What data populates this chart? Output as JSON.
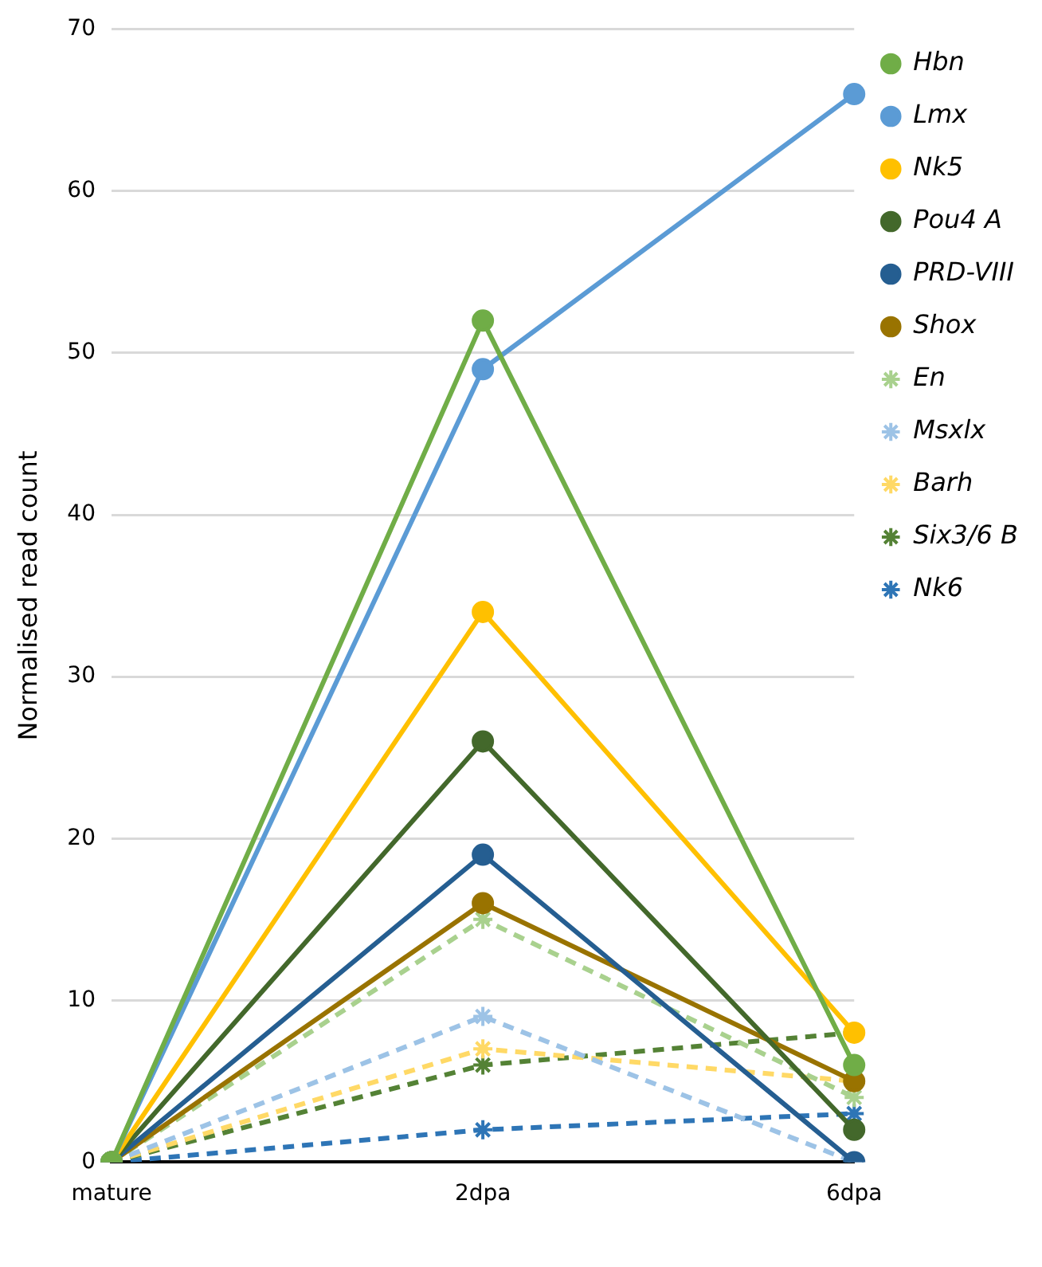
{
  "chart_data": {
    "type": "line",
    "ylabel": "Normalised read count",
    "categories": [
      "mature",
      "2dpa",
      "6dpa"
    ],
    "ylim": [
      0,
      70
    ],
    "yticks": [
      0,
      10,
      20,
      30,
      40,
      50,
      60,
      70
    ],
    "grid": "y",
    "legend": "right",
    "series": [
      {
        "name": "Hbn",
        "color": "#70ad47",
        "marker": "circle",
        "line_style": "solid",
        "values": [
          0,
          52,
          6
        ]
      },
      {
        "name": "Lmx",
        "color": "#5b9bd5",
        "marker": "circle",
        "line_style": "solid",
        "values": [
          0,
          49,
          66
        ]
      },
      {
        "name": "Nk5",
        "color": "#ffc000",
        "marker": "circle",
        "line_style": "solid",
        "values": [
          0,
          34,
          8
        ]
      },
      {
        "name": "Pou4 A",
        "color": "#43682b",
        "marker": "circle",
        "line_style": "solid",
        "values": [
          0,
          26,
          2
        ]
      },
      {
        "name": "PRD-VIII",
        "color": "#255e91",
        "marker": "circle",
        "line_style": "solid",
        "values": [
          0,
          19,
          0
        ]
      },
      {
        "name": "Shox",
        "color": "#997300",
        "marker": "circle",
        "line_style": "solid",
        "values": [
          0,
          16,
          5
        ]
      },
      {
        "name": "En",
        "color": "#a9d18e",
        "marker": "cross",
        "line_style": "dashed",
        "values": [
          0,
          15,
          4
        ]
      },
      {
        "name": "Msxlx",
        "color": "#9dc3e6",
        "marker": "cross",
        "line_style": "dashed",
        "values": [
          0,
          9,
          0
        ]
      },
      {
        "name": "Barh",
        "color": "#ffd966",
        "marker": "cross",
        "line_style": "dashed",
        "values": [
          0,
          7,
          5
        ]
      },
      {
        "name": "Six3/6 B",
        "color": "#548235",
        "marker": "cross",
        "line_style": "dashed",
        "values": [
          0,
          6,
          8
        ]
      },
      {
        "name": "Nk6",
        "color": "#2e75b6",
        "marker": "cross",
        "line_style": "dashed",
        "values": [
          0,
          2,
          3
        ]
      }
    ]
  }
}
